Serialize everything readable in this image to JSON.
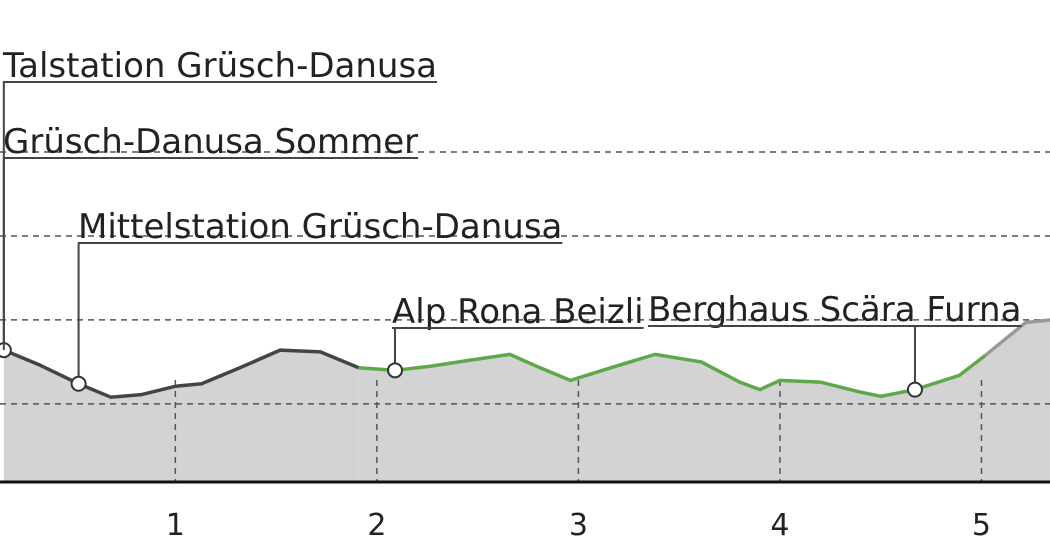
{
  "chart_data": {
    "type": "elevation-profile",
    "x": [
      0.149,
      0.33,
      0.52,
      0.68,
      0.83,
      1.0,
      1.13,
      1.32,
      1.52,
      1.72,
      1.91,
      2.09,
      2.27,
      2.46,
      2.66,
      2.81,
      2.96,
      3.16,
      3.38,
      3.61,
      3.8,
      3.9,
      4.0,
      4.2,
      4.4,
      4.5,
      4.67,
      4.89,
      5.02,
      5.22,
      5.34
    ],
    "series": [
      {
        "color": "#444444",
        "values": [
          164,
          146,
          124,
          108,
          111,
          121,
          124,
          143,
          164,
          162,
          143,
          null,
          null,
          null,
          null,
          null,
          null,
          null,
          null,
          null,
          null,
          null,
          null,
          null,
          null,
          null,
          null,
          null,
          null,
          null,
          null
        ]
      },
      {
        "color": "#5fa84a",
        "values": [
          null,
          null,
          null,
          null,
          null,
          null,
          null,
          null,
          null,
          null,
          143,
          140,
          145,
          152,
          159,
          143,
          128,
          143,
          159,
          150,
          126,
          117,
          128,
          126,
          114,
          109,
          117,
          134,
          158,
          null,
          null
        ]
      },
      {
        "color": "#999999",
        "values": [
          null,
          null,
          null,
          null,
          null,
          null,
          null,
          null,
          null,
          null,
          null,
          null,
          null,
          null,
          null,
          null,
          null,
          null,
          null,
          null,
          null,
          null,
          null,
          null,
          null,
          null,
          null,
          null,
          158,
          197,
          200
        ]
      }
    ],
    "area_color": "#d3d3d3",
    "xlim": [
      0.13,
      5.34
    ],
    "xticks": [
      1,
      2,
      3,
      4,
      5
    ],
    "ylim": [
      7,
      581
    ],
    "yticks": [
      100,
      200,
      300,
      400
    ],
    "grid": true,
    "waypoints": [
      {
        "label": "Talstation Grüsch-Danusa",
        "x": 0.149,
        "value": 164
      },
      {
        "label": "Grüsch-Danusa Sommer",
        "x": 0.149
      },
      {
        "label": "Mittelstation Grüsch-Danusa",
        "x": 0.52,
        "value": 124
      },
      {
        "label": "Alp Rona Beizli",
        "x": 2.09,
        "value": 140
      },
      {
        "label": "Berghaus Scära Furna",
        "x": 4.67,
        "value": 117
      }
    ]
  }
}
